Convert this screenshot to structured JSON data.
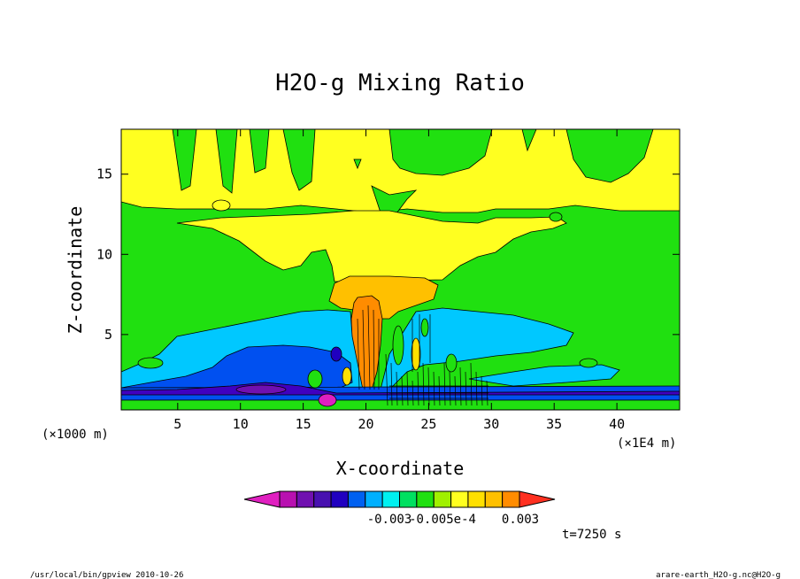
{
  "chart_data": {
    "type": "heatmap",
    "title": "H2O-g Mixing Ratio",
    "xlabel": "X-coordinate",
    "ylabel": "Z-coordinate",
    "x_unit": "(×1E4 m)",
    "y_unit": "(×1000 m)",
    "xlim": [
      0.5,
      45
    ],
    "ylim": [
      0.3,
      17.8
    ],
    "x_ticks": [
      5,
      10,
      15,
      20,
      25,
      30,
      35,
      40
    ],
    "y_ticks": [
      5,
      10,
      15
    ],
    "time_label": "t=7250 s",
    "colorbar": {
      "colors": [
        "#e020c0",
        "#b810b0",
        "#7010b0",
        "#4810b0",
        "#2000c0",
        "#0060f0",
        "#00b0ff",
        "#00f0f0",
        "#00e060",
        "#20e010",
        "#a0f000",
        "#ffff20",
        "#ffe000",
        "#ffc000",
        "#ff8c00",
        "#ff3020"
      ],
      "labels": [
        "-0.003",
        "-0.005e-4",
        "0.003"
      ]
    },
    "bands": [
      {
        "name": "upper-yellow-layer",
        "z_range": [
          12.5,
          17.8
        ],
        "color": "#ffff20"
      },
      {
        "name": "anvil",
        "z_range": [
          7.5,
          13
        ],
        "color": "#ffe000"
      },
      {
        "name": "core",
        "z_range": [
          4,
          9
        ],
        "color": "#ffa000"
      },
      {
        "name": "cyan-layer",
        "z_range": [
          1.5,
          6
        ],
        "color": "#00c8ff"
      },
      {
        "name": "blue-layer",
        "z_range": [
          0.9,
          4.5
        ],
        "color": "#0050f0"
      },
      {
        "name": "dark-layer",
        "z_range": [
          0.8,
          1.6
        ],
        "color": "#4000c0"
      }
    ]
  },
  "footer": {
    "left": "/usr/local/bin/gpview  2010-10-26",
    "right": "arare-earth_H2O-g.nc@H2O-g"
  }
}
